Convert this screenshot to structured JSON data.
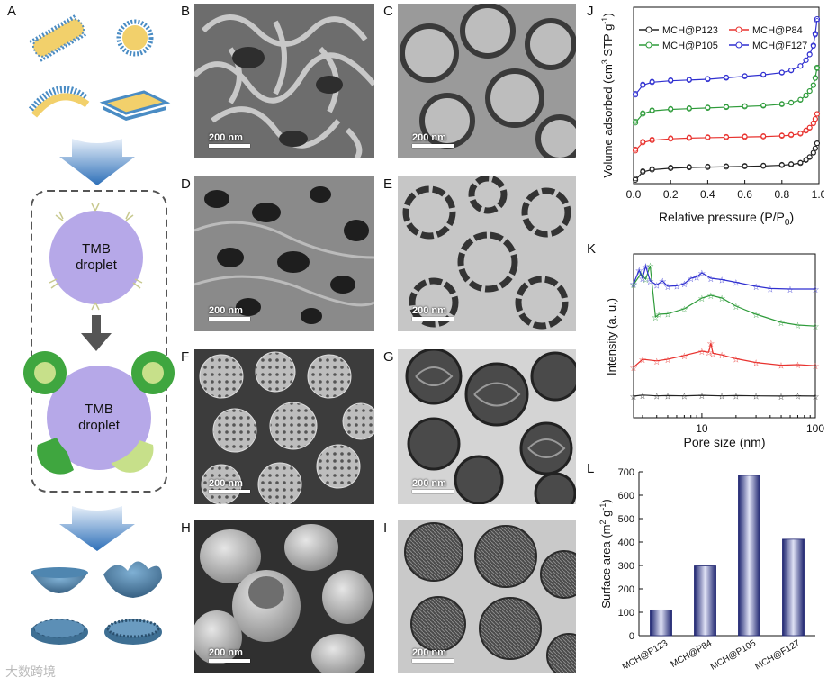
{
  "panel_labels": {
    "A": "A",
    "B": "B",
    "C": "C",
    "D": "D",
    "E": "E",
    "F": "F",
    "G": "G",
    "H": "H",
    "I": "I",
    "J": "J",
    "K": "K",
    "L": "L"
  },
  "scale_label": "200 nm",
  "droplet_label": [
    "TMB",
    "droplet"
  ],
  "watermark": "大数跨境",
  "colors": {
    "black": "#222222",
    "red": "#e8322e",
    "green": "#2e9b3a",
    "blue": "#2f2fd0",
    "droplet": "#b6a8e8",
    "arrow": "#2d6fb8",
    "shell": "#3e6f93"
  },
  "chart_data": [
    {
      "type": "line",
      "panel": "J",
      "xlabel": "Relative pressure (P/P0)",
      "ylabel": "Volume adsorbed (cm3 STP g-1)",
      "xlim": [
        0,
        1
      ],
      "xticks": [
        "0.0",
        "0.2",
        "0.4",
        "0.6",
        "0.8",
        "1.0"
      ],
      "legend": "top",
      "series": [
        {
          "name": "MCH@P123",
          "color": "#222222",
          "offset": 0,
          "x": [
            0.01,
            0.05,
            0.1,
            0.2,
            0.3,
            0.4,
            0.5,
            0.6,
            0.7,
            0.8,
            0.85,
            0.9,
            0.93,
            0.95,
            0.97,
            0.98,
            0.99
          ],
          "y": [
            5,
            16,
            19,
            21,
            22,
            22.5,
            23,
            23.5,
            24,
            25,
            26,
            28,
            32,
            36,
            42,
            48,
            55
          ]
        },
        {
          "name": "MCH@P84",
          "color": "#e8322e",
          "offset": 40,
          "x": [
            0.01,
            0.05,
            0.1,
            0.2,
            0.3,
            0.4,
            0.5,
            0.6,
            0.7,
            0.8,
            0.85,
            0.9,
            0.93,
            0.95,
            0.97,
            0.98,
            0.99
          ],
          "y": [
            5,
            16,
            19,
            21,
            22,
            22.5,
            23,
            23.5,
            24,
            25,
            26,
            28,
            32,
            36,
            42,
            48,
            55
          ]
        },
        {
          "name": "MCH@P105",
          "color": "#2e9b3a",
          "offset": 78,
          "x": [
            0.01,
            0.05,
            0.1,
            0.2,
            0.3,
            0.4,
            0.5,
            0.6,
            0.7,
            0.8,
            0.85,
            0.9,
            0.93,
            0.95,
            0.97,
            0.98,
            0.99
          ],
          "y": [
            5,
            17,
            21,
            23,
            24,
            25,
            26,
            27,
            28,
            30,
            32,
            36,
            42,
            48,
            56,
            66,
            80
          ]
        },
        {
          "name": "MCH@F127",
          "color": "#2f2fd0",
          "offset": 116,
          "x": [
            0.01,
            0.05,
            0.1,
            0.2,
            0.3,
            0.4,
            0.5,
            0.6,
            0.7,
            0.8,
            0.85,
            0.9,
            0.93,
            0.95,
            0.97,
            0.98,
            0.99
          ],
          "y": [
            5,
            18,
            22,
            24,
            25,
            26,
            28,
            30,
            32,
            35,
            38,
            44,
            52,
            60,
            72,
            88,
            108
          ]
        }
      ]
    },
    {
      "type": "line",
      "panel": "K",
      "xlabel": "Pore size (nm)",
      "ylabel": "Intensity (a. u.)",
      "xscale": "log",
      "xlim": [
        2.5,
        100
      ],
      "xticks": [
        "10",
        "100"
      ],
      "series": [
        {
          "name": "MCH@P123",
          "color": "#222222",
          "x": [
            2.5,
            3,
            4,
            5,
            7,
            10,
            15,
            20,
            30,
            50,
            70,
            100
          ],
          "y": [
            0,
            0.4,
            0.1,
            0.2,
            0.1,
            0.3,
            0.1,
            0.2,
            0.1,
            0.05,
            0.1,
            0.05
          ]
        },
        {
          "name": "MCH@P84",
          "color": "#e8322e",
          "x": [
            2.5,
            3,
            4,
            5,
            7,
            10,
            11.5,
            12,
            12.5,
            15,
            20,
            30,
            50,
            70,
            100
          ],
          "y": [
            0,
            1.5,
            1.2,
            1.5,
            2.2,
            3,
            2.8,
            4.5,
            2.6,
            2.3,
            1.6,
            0.9,
            0.4,
            0.5,
            0.3
          ]
        },
        {
          "name": "MCH@P105",
          "color": "#2e9b3a",
          "x": [
            2.5,
            2.9,
            3.2,
            3.5,
            3.9,
            4.2,
            5,
            7,
            10,
            12,
            15,
            20,
            30,
            50,
            70,
            100
          ],
          "y": [
            10,
            12,
            11,
            13.5,
            4,
            4.5,
            4.6,
            5.5,
            7.5,
            8,
            7.5,
            6,
            4.5,
            3,
            2.5,
            2.3
          ]
        },
        {
          "name": "MCH@F127",
          "color": "#2f2fd0",
          "x": [
            2.5,
            2.8,
            3,
            3.2,
            3.5,
            4,
            4.5,
            5,
            6,
            7,
            8,
            9,
            10,
            12,
            15,
            20,
            30,
            40,
            60,
            100
          ],
          "y": [
            3,
            8,
            5,
            9.5,
            4,
            2.5,
            4,
            2,
            2.2,
            3,
            5,
            5.5,
            7,
            5,
            4.5,
            3.5,
            2,
            1.2,
            1,
            1
          ]
        }
      ]
    },
    {
      "type": "bar",
      "panel": "L",
      "ylabel": "Surface area (m2 g-1)",
      "categories": [
        "MCH@P123",
        "MCH@P84",
        "MCH@P105",
        "MCH@F127"
      ],
      "values": [
        110,
        298,
        685,
        412
      ],
      "ylim": [
        0,
        700
      ],
      "yticks": [
        "0",
        "100",
        "200",
        "300",
        "400",
        "500",
        "600",
        "700"
      ]
    }
  ]
}
